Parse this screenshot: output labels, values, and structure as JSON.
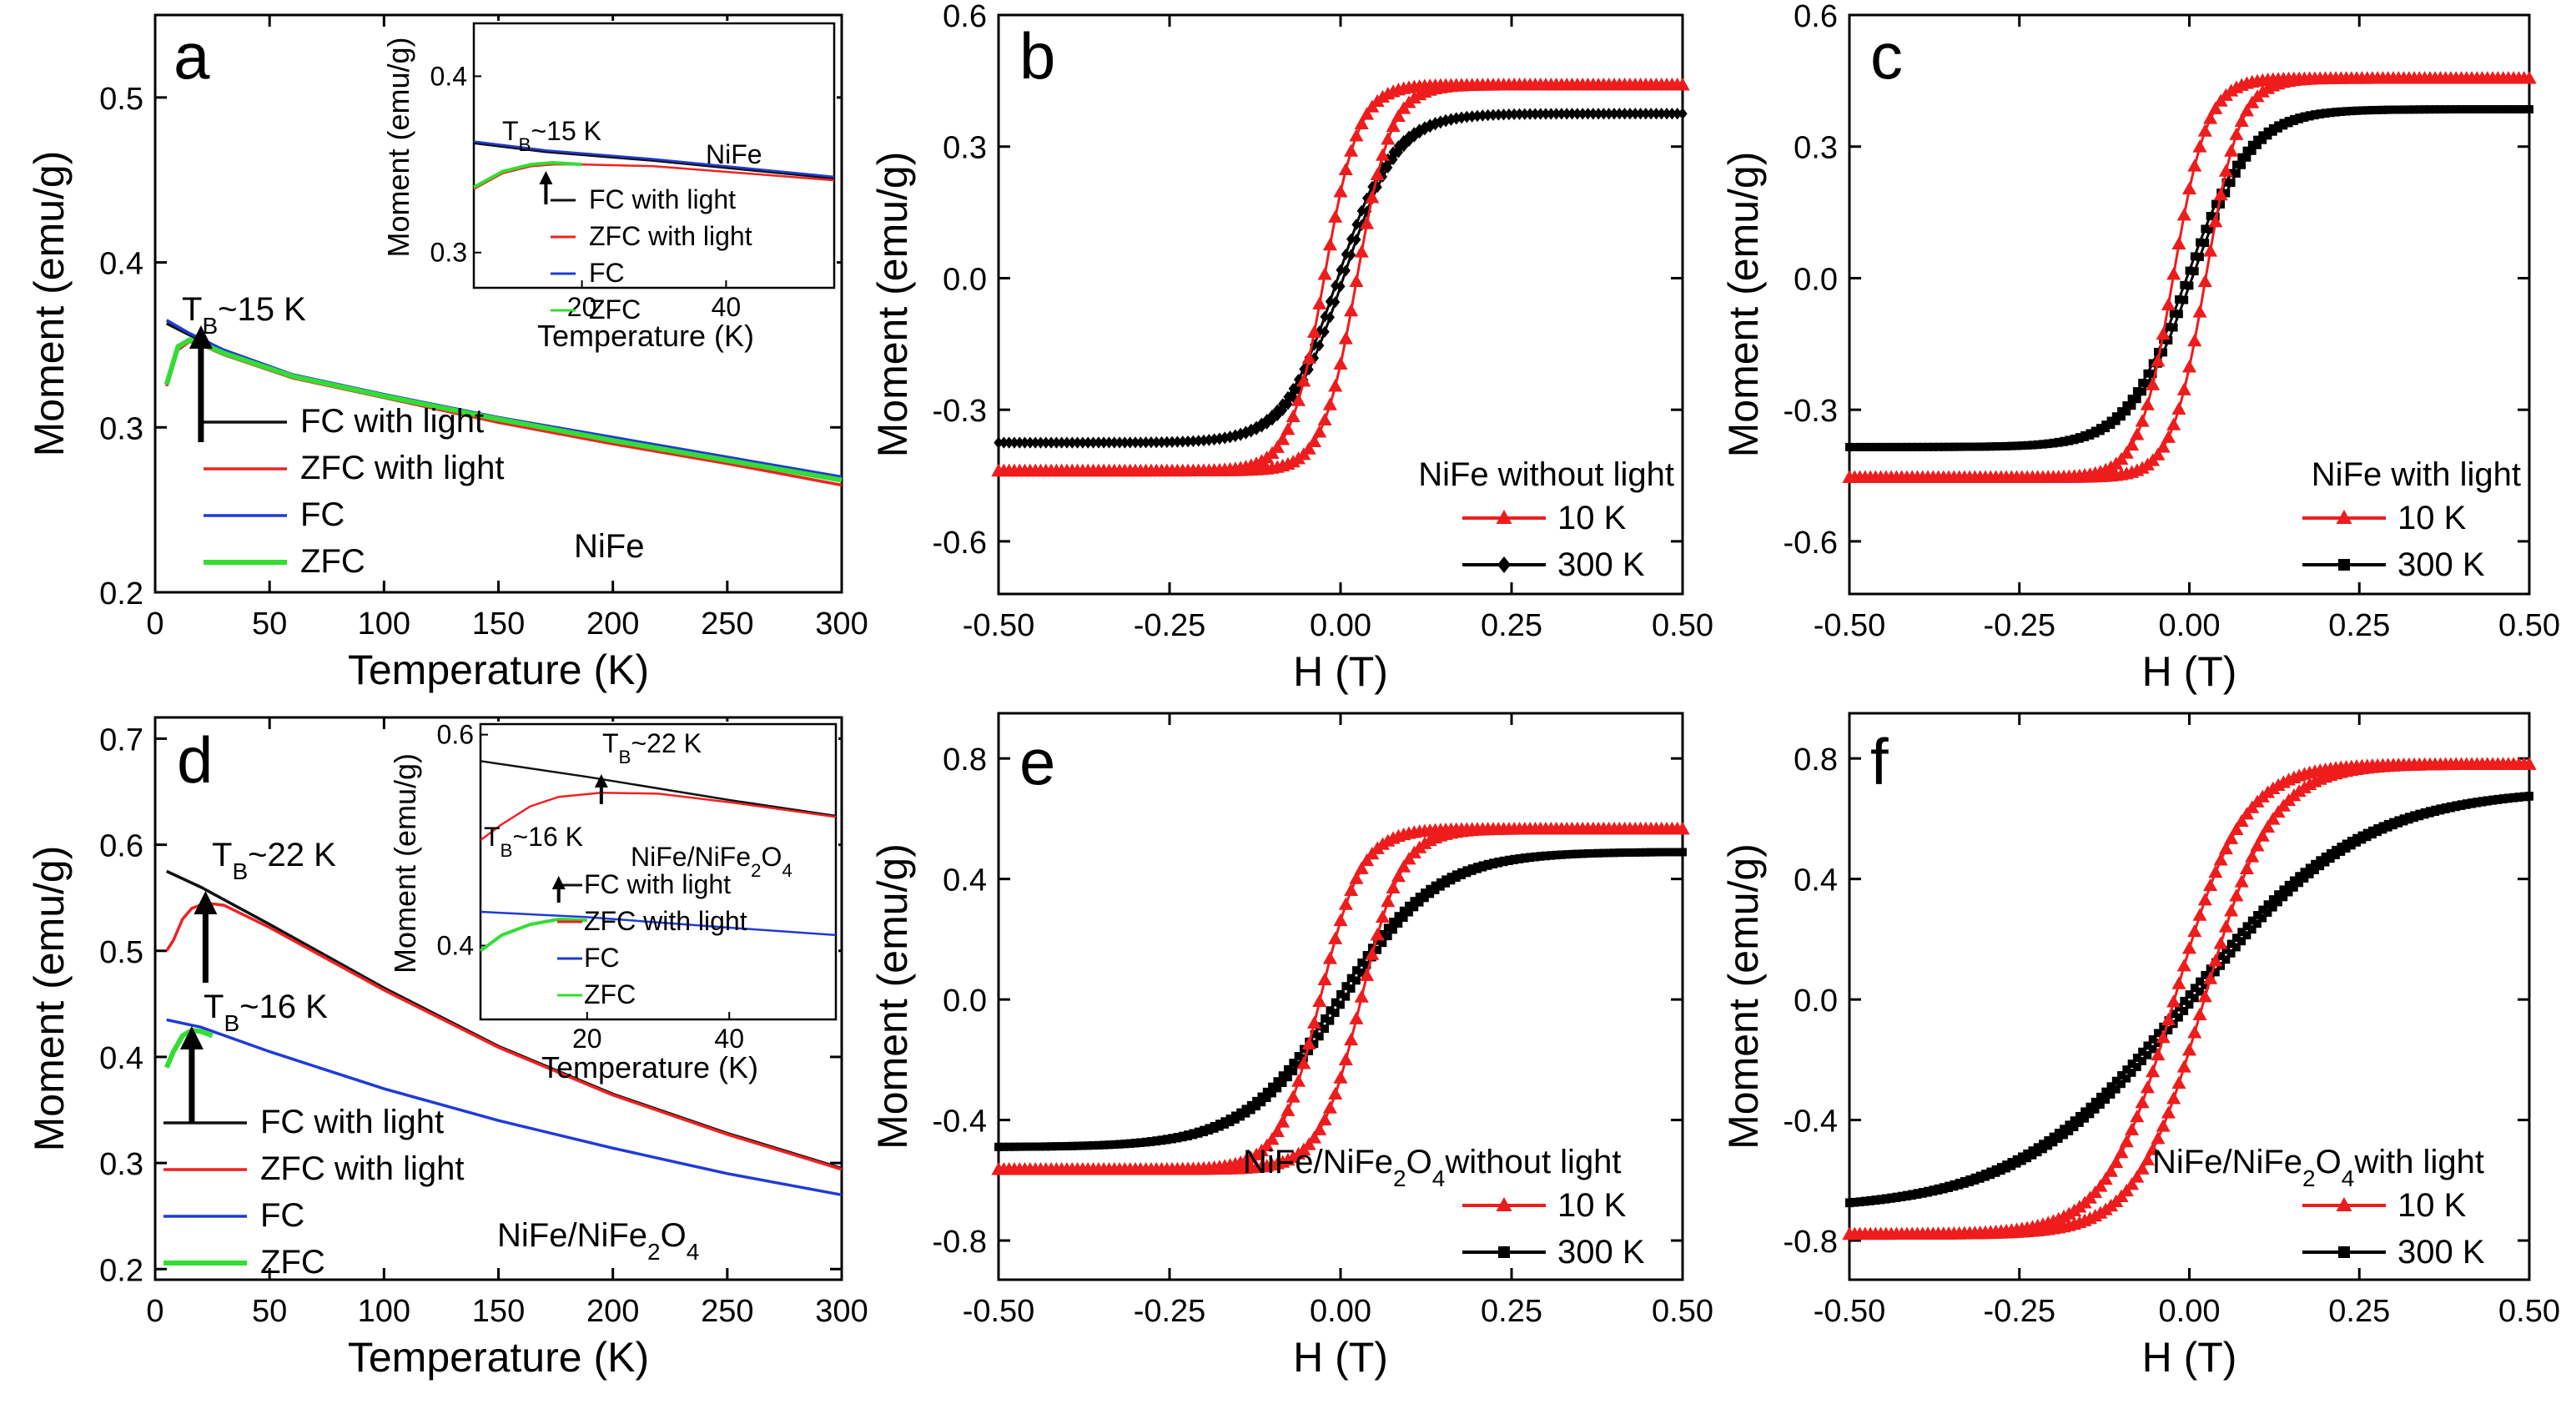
{
  "colors": {
    "fc_light": "#111111",
    "zfc_light": "#ee2222",
    "fc": "#1f3bd6",
    "zfc": "#33dd33",
    "k10": "#ee1c1c",
    "k300": "#000000"
  },
  "chart_data": [
    {
      "panel": "a",
      "type": "line",
      "xlabel": "Temperature (K)",
      "ylabel": "Moment (emu/g)",
      "xlim": [
        0,
        300
      ],
      "ylim": [
        0.2,
        0.55
      ],
      "xticks": [
        0,
        50,
        100,
        150,
        200,
        250,
        300
      ],
      "yticks": [
        0.2,
        0.3,
        0.4,
        0.5
      ],
      "annotation": {
        "text": "T",
        "sub": "B",
        "rest": "~15 K",
        "x": 15,
        "y": 0.36
      },
      "label": "NiFe",
      "series": [
        {
          "name": "FC with light",
          "color": "#111111",
          "x": [
            5,
            15,
            30,
            60,
            100,
            150,
            200,
            250,
            300
          ],
          "y": [
            0.363,
            0.356,
            0.346,
            0.331,
            0.319,
            0.305,
            0.293,
            0.281,
            0.269
          ]
        },
        {
          "name": "ZFC with light",
          "color": "#ee2222",
          "x": [
            5,
            10,
            15,
            20,
            30,
            60,
            100,
            150,
            200,
            250,
            300
          ],
          "y": [
            0.325,
            0.347,
            0.352,
            0.35,
            0.344,
            0.33,
            0.318,
            0.303,
            0.29,
            0.278,
            0.265
          ]
        },
        {
          "name": "FC",
          "color": "#1f3bd6",
          "x": [
            5,
            15,
            30,
            60,
            100,
            150,
            200,
            250,
            300
          ],
          "y": [
            0.365,
            0.357,
            0.347,
            0.332,
            0.32,
            0.306,
            0.294,
            0.282,
            0.27
          ]
        },
        {
          "name": "ZFC",
          "color": "#33dd33",
          "x": [
            5,
            10,
            15,
            20,
            30,
            60,
            100,
            150,
            200,
            250,
            300
          ],
          "y": [
            0.326,
            0.349,
            0.353,
            0.351,
            0.345,
            0.331,
            0.319,
            0.305,
            0.292,
            0.28,
            0.268
          ]
        }
      ],
      "inset": {
        "xlabel": "Temperature (K)",
        "ylabel": "Moment (emu/g)",
        "xlim": [
          5,
          55
        ],
        "ylim": [
          0.28,
          0.43
        ],
        "xticks": [
          20,
          40
        ],
        "yticks": [
          0.3,
          0.4
        ],
        "annotation": {
          "text": "T",
          "sub": "B",
          "rest": "~15 K",
          "x": 15,
          "y": 0.36
        },
        "label": "NiFe",
        "series": [
          {
            "name": "FC with light",
            "color": "#111111",
            "x": [
              5,
              15,
              30,
              55
            ],
            "y": [
              0.362,
              0.357,
              0.352,
              0.342
            ]
          },
          {
            "name": "ZFC with light",
            "color": "#ee2222",
            "x": [
              5,
              9,
              13,
              16,
              20,
              30,
              55
            ],
            "y": [
              0.336,
              0.345,
              0.349,
              0.35,
              0.35,
              0.349,
              0.341
            ]
          },
          {
            "name": "FC",
            "color": "#1f3bd6",
            "x": [
              5,
              15,
              30,
              55
            ],
            "y": [
              0.363,
              0.358,
              0.353,
              0.343
            ]
          },
          {
            "name": "ZFC",
            "color": "#33dd33",
            "x": [
              5,
              9,
              13,
              16,
              20
            ],
            "y": [
              0.337,
              0.346,
              0.35,
              0.351,
              0.35
            ]
          }
        ]
      }
    },
    {
      "panel": "b",
      "type": "scatter-line",
      "xlabel": "H (T)",
      "ylabel": "Moment (emu/g)",
      "xlim": [
        -0.5,
        0.5
      ],
      "ylim": [
        -0.72,
        0.6
      ],
      "xticks": [
        -0.5,
        -0.25,
        0.0,
        0.25,
        0.5
      ],
      "xticklabels": [
        "-0.50",
        "-0.25",
        "0.00",
        "0.25",
        "0.50"
      ],
      "yticks": [
        -0.6,
        -0.3,
        0.0,
        0.3,
        0.6
      ],
      "yticklabels": [
        "-0.6",
        "-0.3",
        "0.0",
        "0.3",
        "0.6"
      ],
      "legend_title": "NiFe without light",
      "series": [
        {
          "name": "10 K",
          "marker": "triangle",
          "color": "#ee1c1c",
          "Ms": 0.44,
          "Hc": 0.024,
          "w": 0.05
        },
        {
          "name": "300 K",
          "marker": "diamond",
          "color": "#000000",
          "Ms": 0.375,
          "Hc": 0.004,
          "w": 0.08
        }
      ]
    },
    {
      "panel": "c",
      "type": "scatter-line",
      "xlabel": "H (T)",
      "ylabel": "Moment (emu/g)",
      "xlim": [
        -0.5,
        0.5
      ],
      "ylim": [
        -0.72,
        0.6
      ],
      "xticks": [
        -0.5,
        -0.25,
        0.0,
        0.25,
        0.5
      ],
      "xticklabels": [
        "-0.50",
        "-0.25",
        "0.00",
        "0.25",
        "0.50"
      ],
      "yticks": [
        -0.6,
        -0.3,
        0.0,
        0.3,
        0.6
      ],
      "yticklabels": [
        "-0.6",
        "-0.3",
        "0.0",
        "0.3",
        "0.6"
      ],
      "legend_title": "NiFe with light",
      "series": [
        {
          "name": "10 K",
          "marker": "triangle",
          "color": "#ee1c1c",
          "Ms": 0.455,
          "Hc": 0.024,
          "w": 0.05
        },
        {
          "name": "300 K",
          "marker": "square",
          "color": "#000000",
          "Ms": 0.385,
          "Hc": 0.004,
          "w": 0.09
        }
      ]
    },
    {
      "panel": "d",
      "type": "line",
      "xlabel": "Temperature (K)",
      "ylabel": "Moment (emu/g)",
      "xlim": [
        0,
        300
      ],
      "ylim": [
        0.19,
        0.72
      ],
      "xticks": [
        0,
        50,
        100,
        150,
        200,
        250,
        300
      ],
      "yticks": [
        0.2,
        0.3,
        0.4,
        0.5,
        0.6,
        0.7
      ],
      "annotations": [
        {
          "text": "T",
          "sub": "B",
          "rest": "~22 K",
          "x": 22,
          "y": 0.545
        },
        {
          "text": "T",
          "sub": "B",
          "rest": "~16 K",
          "x": 16,
          "y": 0.425
        }
      ],
      "label": {
        "main": "NiFe/NiFe",
        "sub": "2",
        "tail": "O",
        "sub2": "4"
      },
      "series": [
        {
          "name": "FC with light",
          "color": "#111111",
          "x": [
            5,
            20,
            50,
            100,
            150,
            200,
            250,
            300
          ],
          "y": [
            0.575,
            0.56,
            0.525,
            0.465,
            0.41,
            0.365,
            0.328,
            0.295
          ]
        },
        {
          "name": "ZFC with light",
          "color": "#ee2222",
          "x": [
            5,
            8,
            12,
            16,
            22,
            30,
            50,
            100,
            150,
            200,
            250,
            300
          ],
          "y": [
            0.5,
            0.51,
            0.53,
            0.54,
            0.545,
            0.543,
            0.522,
            0.463,
            0.409,
            0.364,
            0.327,
            0.294
          ]
        },
        {
          "name": "FC",
          "color": "#1f3bd6",
          "x": [
            5,
            20,
            50,
            100,
            150,
            200,
            250,
            300
          ],
          "y": [
            0.435,
            0.428,
            0.405,
            0.37,
            0.34,
            0.314,
            0.29,
            0.27
          ]
        },
        {
          "name": "ZFC",
          "color": "#33dd33",
          "x": [
            5,
            8,
            12,
            16,
            20,
            25
          ],
          "y": [
            0.39,
            0.405,
            0.42,
            0.425,
            0.424,
            0.42
          ]
        }
      ],
      "inset": {
        "xlabel": "Temperature (K)",
        "ylabel": "Moment (emu/g)",
        "xlim": [
          5,
          55
        ],
        "ylim": [
          0.33,
          0.61
        ],
        "xticks": [
          20,
          40
        ],
        "yticks": [
          0.4,
          0.6
        ],
        "annotations": [
          {
            "text": "T",
            "sub": "B",
            "rest": "~22 K",
            "x": 22,
            "y": 0.545
          },
          {
            "text": "T",
            "sub": "B",
            "rest": "~16 K",
            "x": 16,
            "y": 0.425
          }
        ],
        "label": {
          "main": "NiFe/NiFe",
          "sub": "2",
          "tail": "O",
          "sub2": "4"
        },
        "series": [
          {
            "name": "FC with light",
            "color": "#111111",
            "x": [
              5,
              20,
              40,
              55
            ],
            "y": [
              0.575,
              0.56,
              0.538,
              0.523
            ]
          },
          {
            "name": "ZFC with light",
            "color": "#ee2222",
            "x": [
              5,
              8,
              12,
              16,
              22,
              30,
              40,
              55
            ],
            "y": [
              0.5,
              0.515,
              0.532,
              0.541,
              0.545,
              0.544,
              0.536,
              0.522
            ]
          },
          {
            "name": "FC",
            "color": "#1f3bd6",
            "x": [
              5,
              20,
              40,
              55
            ],
            "y": [
              0.432,
              0.427,
              0.417,
              0.41
            ]
          },
          {
            "name": "ZFC",
            "color": "#33dd33",
            "x": [
              5,
              8,
              12,
              16,
              20
            ],
            "y": [
              0.395,
              0.41,
              0.42,
              0.425,
              0.424
            ]
          }
        ]
      }
    },
    {
      "panel": "e",
      "type": "scatter-line",
      "xlabel": "H (T)",
      "ylabel": "Moment (emu/g)",
      "xlim": [
        -0.5,
        0.5
      ],
      "ylim": [
        -0.93,
        0.95
      ],
      "xticks": [
        -0.5,
        -0.25,
        0.0,
        0.25,
        0.5
      ],
      "xticklabels": [
        "-0.50",
        "-0.25",
        "0.00",
        "0.25",
        "0.50"
      ],
      "yticks": [
        -0.8,
        -0.4,
        0.0,
        0.4,
        0.8
      ],
      "yticklabels": [
        "-0.8",
        "-0.4",
        "0.0",
        "0.4",
        "0.8"
      ],
      "legend_title": {
        "main": "NiFe/NiFe",
        "sub": "2",
        "tail": "O",
        "sub2": "4",
        "rest": "without light"
      },
      "series": [
        {
          "name": "10 K",
          "marker": "triangle",
          "color": "#ee1c1c",
          "Ms": 0.565,
          "Hc": 0.03,
          "w": 0.06
        },
        {
          "name": "300 K",
          "marker": "square",
          "color": "#000000",
          "Ms": 0.49,
          "Hc": 0.005,
          "w": 0.14
        }
      ]
    },
    {
      "panel": "f",
      "type": "scatter-line",
      "xlabel": "H (T)",
      "ylabel": "Moment (emu/g)",
      "xlim": [
        -0.5,
        0.5
      ],
      "ylim": [
        -0.93,
        0.95
      ],
      "xticks": [
        -0.5,
        -0.25,
        0.0,
        0.25,
        0.5
      ],
      "xticklabels": [
        "-0.50",
        "-0.25",
        "0.00",
        "0.25",
        "0.50"
      ],
      "yticks": [
        -0.8,
        -0.4,
        0.0,
        0.4,
        0.8
      ],
      "yticklabels": [
        "-0.8",
        "-0.4",
        "0.0",
        "0.4",
        "0.8"
      ],
      "legend_title": {
        "main": "NiFe/NiFe",
        "sub": "2",
        "tail": "O",
        "sub2": "4",
        "rest": "with light"
      },
      "series": [
        {
          "name": "10 K",
          "marker": "triangle",
          "color": "#ee1c1c",
          "Ms": 0.78,
          "Hc": 0.022,
          "w": 0.1
        },
        {
          "name": "300 K",
          "marker": "square",
          "color": "#000000",
          "Ms": 0.7,
          "Hc": 0.006,
          "w": 0.25
        }
      ]
    }
  ]
}
